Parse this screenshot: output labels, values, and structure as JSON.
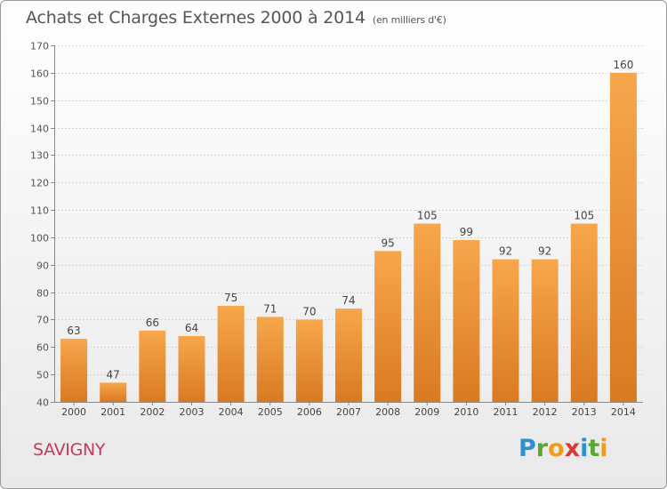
{
  "header": {
    "title": "Achats et Charges Externes 2000 à 2014",
    "unit": "(en milliers d'€)"
  },
  "commune": "SAVIGNY",
  "logo": {
    "letters": [
      "P",
      "r",
      "o",
      "x",
      "i",
      "t",
      "i"
    ],
    "colors": [
      "#2f8fd0",
      "#58a832",
      "#f29a1c",
      "#d83a3a",
      "#2f8fd0",
      "#58a832",
      "#f29a1c"
    ]
  },
  "colors": {
    "bar_light": "#f7a64c",
    "bar_dark": "#d97a22"
  },
  "chart_data": {
    "type": "bar",
    "title": "Achats et Charges Externes 2000 à 2014",
    "subtitle": "(en milliers d'€)",
    "categories": [
      "2000",
      "2001",
      "2002",
      "2003",
      "2004",
      "2005",
      "2006",
      "2007",
      "2008",
      "2009",
      "2010",
      "2011",
      "2012",
      "2013",
      "2014"
    ],
    "values": [
      63,
      47,
      66,
      64,
      75,
      71,
      70,
      74,
      95,
      105,
      99,
      92,
      92,
      105,
      160
    ],
    "ylim": [
      40,
      170
    ],
    "yticks": [
      40,
      50,
      60,
      70,
      80,
      90,
      100,
      110,
      120,
      130,
      140,
      150,
      160,
      170
    ],
    "xlabel": "",
    "ylabel": "",
    "grid": true
  }
}
